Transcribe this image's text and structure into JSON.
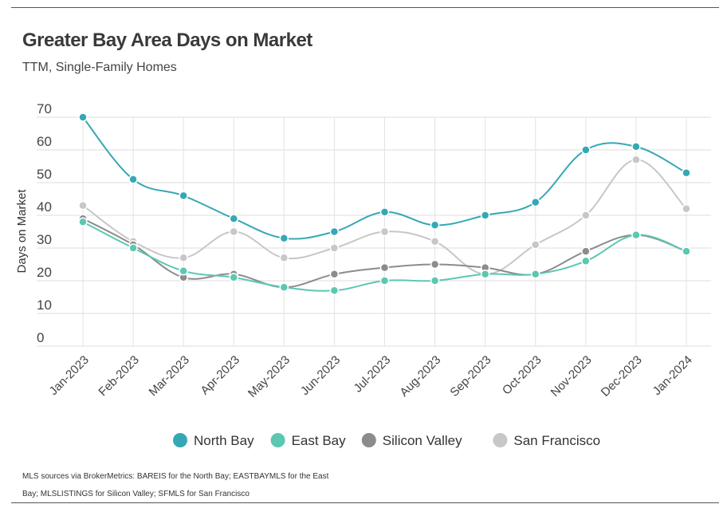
{
  "header": {
    "title": "Greater Bay Area Days on Market",
    "subtitle": "TTM, Single-Family Homes"
  },
  "footer": {
    "source": "MLS sources via BrokerMetrics: BAREIS for the North Bay; EASTBAYMLS for the East Bay; MLSLISTINGS for Silicon Valley; SFMLS for San Francisco"
  },
  "chart_data": {
    "type": "line",
    "title": "Greater Bay Area Days on Market",
    "subtitle": "TTM, Single-Family Homes",
    "xlabel": "",
    "ylabel": "Days on Market",
    "ylim": [
      0,
      70
    ],
    "yticks": [
      0,
      10,
      20,
      30,
      40,
      50,
      60,
      70
    ],
    "grid": true,
    "legend_position": "bottom",
    "categories": [
      "Jan-2023",
      "Feb-2023",
      "Mar-2023",
      "Apr-2023",
      "May-2023",
      "Jun-2023",
      "Jul-2023",
      "Aug-2023",
      "Sep-2023",
      "Oct-2023",
      "Nov-2023",
      "Dec-2023",
      "Jan-2024"
    ],
    "series": [
      {
        "name": "North Bay",
        "color": "#35a8b5",
        "values": [
          70,
          51,
          46,
          39,
          33,
          35,
          41,
          37,
          40,
          44,
          60,
          61,
          53
        ]
      },
      {
        "name": "East Bay",
        "color": "#5cc7b2",
        "values": [
          38,
          30,
          23,
          21,
          18,
          17,
          20,
          20,
          22,
          22,
          26,
          34,
          29
        ]
      },
      {
        "name": "Silicon Valley",
        "color": "#8c8c8c",
        "values": [
          39,
          31,
          21,
          22,
          18,
          22,
          24,
          25,
          24,
          22,
          29,
          34,
          29
        ]
      },
      {
        "name": "San Francisco",
        "color": "#c7c7c7",
        "values": [
          43,
          32,
          27,
          35,
          27,
          30,
          35,
          32,
          22,
          31,
          40,
          57,
          42
        ]
      }
    ]
  }
}
